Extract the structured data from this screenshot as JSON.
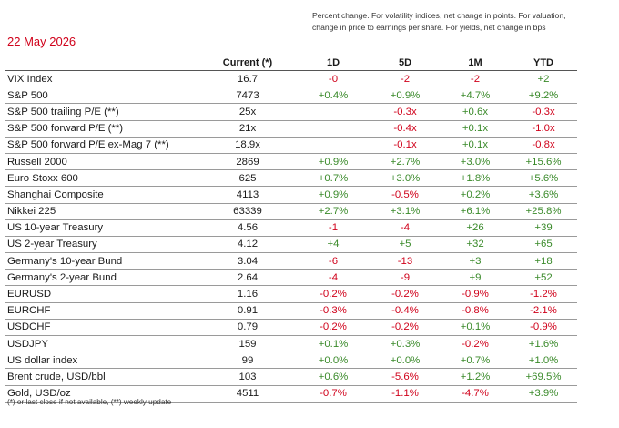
{
  "date": "22 May 2026",
  "note": "Percent change. For volatility indices, net change in points. For valuation, change in price to earnings per share. For yields,  net change in bps",
  "headers": {
    "name": "",
    "current": "Current (*)",
    "d1": "1D",
    "d5": "5D",
    "m1": "1M",
    "ytd": "YTD"
  },
  "colors": {
    "positive": "#3a8a2a",
    "negative": "#d0021b",
    "date": "#d0021b"
  },
  "rows": [
    {
      "name": "VIX Index",
      "current": "16.7",
      "d1": "-0",
      "d5": "-2",
      "m1": "-2",
      "ytd": "+2"
    },
    {
      "name": "S&P 500",
      "current": "7473",
      "d1": "+0.4%",
      "d5": "+0.9%",
      "m1": "+4.7%",
      "ytd": "+9.2%"
    },
    {
      "name": "S&P 500 trailing P/E (**)",
      "current": "25x",
      "d1": "",
      "d5": "-0.3x",
      "m1": "+0.6x",
      "ytd": "-0.3x"
    },
    {
      "name": "S&P 500 forward P/E (**)",
      "current": "21x",
      "d1": "",
      "d5": "-0.4x",
      "m1": "+0.1x",
      "ytd": "-1.0x"
    },
    {
      "name": "S&P 500 forward P/E ex-Mag 7 (**)",
      "current": "18.9x",
      "d1": "",
      "d5": "-0.1x",
      "m1": "+0.1x",
      "ytd": "-0.8x"
    },
    {
      "name": "Russell 2000",
      "current": "2869",
      "d1": "+0.9%",
      "d5": "+2.7%",
      "m1": "+3.0%",
      "ytd": "+15.6%"
    },
    {
      "name": "Euro Stoxx 600",
      "current": "625",
      "d1": "+0.7%",
      "d5": "+3.0%",
      "m1": "+1.8%",
      "ytd": "+5.6%"
    },
    {
      "name": "Shanghai Composite",
      "current": "4113",
      "d1": "+0.9%",
      "d5": "-0.5%",
      "m1": "+0.2%",
      "ytd": "+3.6%"
    },
    {
      "name": "Nikkei 225",
      "current": "63339",
      "d1": "+2.7%",
      "d5": "+3.1%",
      "m1": "+6.1%",
      "ytd": "+25.8%"
    },
    {
      "name": "US 10-year Treasury",
      "current": "4.56",
      "d1": "-1",
      "d5": "-4",
      "m1": "+26",
      "ytd": "+39"
    },
    {
      "name": "US 2-year Treasury",
      "current": "4.12",
      "d1": "+4",
      "d5": "+5",
      "m1": "+32",
      "ytd": "+65"
    },
    {
      "name": "Germany's 10-year Bund",
      "current": "3.04",
      "d1": "-6",
      "d5": "-13",
      "m1": "+3",
      "ytd": "+18"
    },
    {
      "name": "Germany's 2-year Bund",
      "current": "2.64",
      "d1": "-4",
      "d5": "-9",
      "m1": "+9",
      "ytd": "+52"
    },
    {
      "name": "EURUSD",
      "current": "1.16",
      "d1": "-0.2%",
      "d5": "-0.2%",
      "m1": "-0.9%",
      "ytd": "-1.2%"
    },
    {
      "name": "EURCHF",
      "current": "0.91",
      "d1": "-0.3%",
      "d5": "-0.4%",
      "m1": "-0.8%",
      "ytd": "-2.1%"
    },
    {
      "name": "USDCHF",
      "current": "0.79",
      "d1": "-0.2%",
      "d5": "-0.2%",
      "m1": "+0.1%",
      "ytd": "-0.9%"
    },
    {
      "name": "USDJPY",
      "current": "159",
      "d1": "+0.1%",
      "d5": "+0.3%",
      "m1": "-0.2%",
      "ytd": "+1.6%"
    },
    {
      "name": "US dollar index",
      "current": "99",
      "d1": "+0.0%",
      "d5": "+0.0%",
      "m1": "+0.7%",
      "ytd": "+1.0%"
    },
    {
      "name": "Brent crude, USD/bbl",
      "current": "103",
      "d1": "+0.6%",
      "d5": "-5.6%",
      "m1": "+1.2%",
      "ytd": "+69.5%"
    },
    {
      "name": "Gold,  USD/oz",
      "current": "4511",
      "d1": "-0.7%",
      "d5": "-1.1%",
      "m1": "-4.7%",
      "ytd": "+3.9%"
    }
  ],
  "footnote": "(*) or last close if not available, (**) weekly update"
}
